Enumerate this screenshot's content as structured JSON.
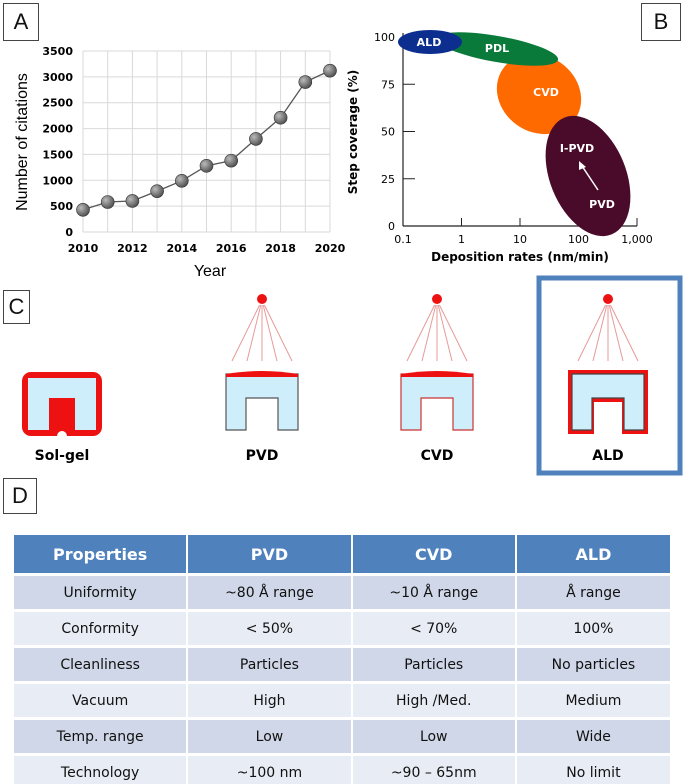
{
  "panel_labels": {
    "a": "A",
    "b": "B",
    "c": "C",
    "d": "D"
  },
  "chart_data": [
    {
      "type": "line",
      "panel": "A",
      "x": [
        2010,
        2011,
        2012,
        2013,
        2014,
        2015,
        2016,
        2017,
        2018,
        2019,
        2020
      ],
      "values": [
        430,
        580,
        600,
        790,
        990,
        1280,
        1380,
        1800,
        2210,
        2900,
        3120
      ],
      "xlabel": "Year",
      "ylabel": "Number of citations",
      "ylim": [
        0,
        3500
      ],
      "xlim": [
        2010,
        2020
      ],
      "yticks": [
        "0",
        "500",
        "1000",
        "1500",
        "2000",
        "2500",
        "3000",
        "3500"
      ],
      "xticks": [
        "2010",
        "2012",
        "2014",
        "2016",
        "2018",
        "2020"
      ],
      "grid": true,
      "marker_color": "#555555"
    },
    {
      "type": "scatter",
      "panel": "B",
      "xscale": "log",
      "xlim": [
        0.1,
        1000
      ],
      "ylim": [
        0,
        100
      ],
      "xlabel": "Deposition rates (nm/min)",
      "ylabel": "Step coverage (%)",
      "xticks": [
        "0.1",
        "1",
        "10",
        "100",
        "1,000"
      ],
      "yticks": [
        "0",
        "25",
        "50",
        "75",
        "100"
      ],
      "regions": [
        {
          "name": "ALD",
          "x_range": [
            0.1,
            0.8
          ],
          "y_range": [
            93,
            100
          ],
          "color": "#0b2e8f"
        },
        {
          "name": "PDL",
          "x_range": [
            0.4,
            40
          ],
          "y_range": [
            85,
            100
          ],
          "color": "#0a7a3a"
        },
        {
          "name": "CVD",
          "x_range": [
            4,
            150
          ],
          "y_range": [
            50,
            88
          ],
          "color": "#ff6a00"
        },
        {
          "name": "I-PVD",
          "x_range": [
            30,
            600
          ],
          "y_range": [
            3,
            55
          ],
          "color": "#4a0a2a"
        },
        {
          "name": "PVD",
          "x_range": [
            30,
            600
          ],
          "y_range": [
            3,
            55
          ],
          "color": "#4a0a2a"
        }
      ]
    }
  ],
  "panel_c": {
    "methods": [
      "Sol-gel",
      "PVD",
      "CVD",
      "ALD"
    ],
    "highlight": "ALD",
    "highlight_color": "#4f81bd",
    "coating_color": "#ee1111",
    "substrate_color": "#cfeefb"
  },
  "table": {
    "headers": [
      "Properties",
      "PVD",
      "CVD",
      "ALD"
    ],
    "rows": [
      [
        "Uniformity",
        "~80 Å range",
        "~10 Å range",
        "Å range"
      ],
      [
        "Conformity",
        "< 50%",
        "< 70%",
        "100%"
      ],
      [
        "Cleanliness",
        "Particles",
        "Particles",
        "No particles"
      ],
      [
        "Vacuum",
        "High",
        "High /Med.",
        "Medium"
      ],
      [
        "Temp. range",
        "Low",
        "Low",
        "Wide"
      ],
      [
        "Technology",
        "~100 nm",
        "~90 – 65nm",
        "No limit"
      ]
    ],
    "header_color": "#4f81bd"
  }
}
